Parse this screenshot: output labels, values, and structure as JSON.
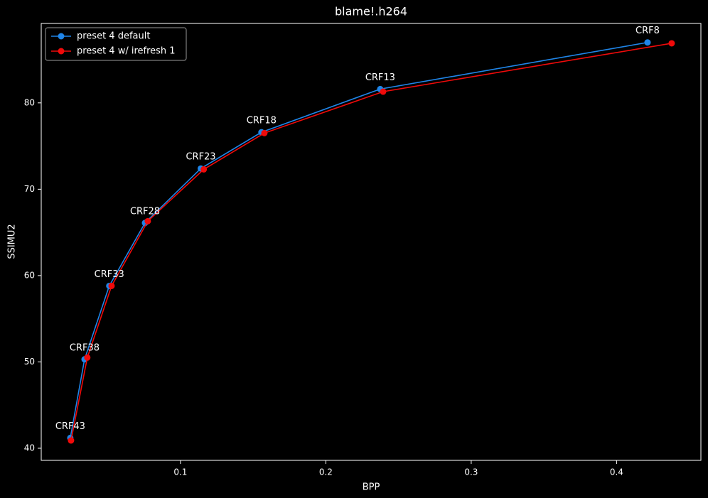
{
  "chart_data": {
    "type": "line",
    "title": "blame!.h264",
    "x_label": "BPP",
    "y_label": "SSIMU2",
    "series": [
      {
        "name": "preset 4 default",
        "color": "#1f85e8",
        "x": [
          0.0242,
          0.034,
          0.051,
          0.0756,
          0.114,
          0.1557,
          0.2374,
          0.4213
        ],
        "values": [
          41.2,
          50.3,
          58.8,
          66.1,
          72.4,
          76.6,
          81.6,
          87.0
        ]
      },
      {
        "name": "preset 4 w/ irefresh 1",
        "color": "#f00a0a",
        "x": [
          0.0247,
          0.0359,
          0.0526,
          0.0775,
          0.116,
          0.1577,
          0.2394,
          0.4379
        ],
        "values": [
          40.9,
          50.5,
          58.8,
          66.3,
          72.3,
          76.5,
          81.3,
          86.9
        ]
      }
    ],
    "annotations": [
      "CRF43",
      "CRF38",
      "CRF33",
      "CRF28",
      "CRF23",
      "CRF18",
      "CRF13",
      "CRF8"
    ],
    "xlim": [
      0.0042,
      0.458
    ],
    "xticks": [
      0.1,
      0.2,
      0.3,
      0.4
    ],
    "ylim": [
      38.6,
      89.2
    ],
    "yticks": [
      40,
      50,
      60,
      70,
      80
    ],
    "legend": "upper-left",
    "grid": false
  }
}
